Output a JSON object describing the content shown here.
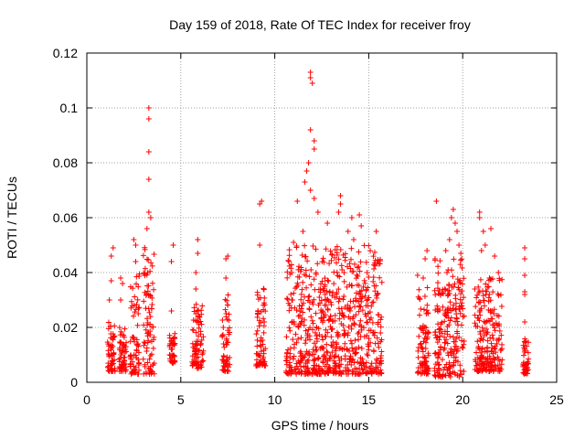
{
  "chart_data": {
    "type": "scatter",
    "title": "Day 159 of 2018, Rate Of TEC Index for receiver froy",
    "xlabel": "GPS time / hours",
    "ylabel": "ROTI / TECUs",
    "xlim": [
      0,
      25
    ],
    "ylim": [
      0,
      0.12
    ],
    "xticks": [
      "0",
      "5",
      "10",
      "15",
      "20",
      "25"
    ],
    "xtick_values": [
      0,
      5,
      10,
      15,
      20,
      25
    ],
    "yticks": [
      "0",
      "0.02",
      "0.04",
      "0.06",
      "0.08",
      "0.1",
      "0.12"
    ],
    "ytick_values": [
      0,
      0.02,
      0.04,
      0.06,
      0.08,
      0.1,
      0.12
    ],
    "grid": true,
    "marker": "+",
    "color": "#ff0000",
    "series": [
      {
        "name": "ROTI",
        "clusters": [
          {
            "x": [
              1.1,
              1.5
            ],
            "ymin": 0.004,
            "ymax": 0.022,
            "outliers": [
              [
                1.2,
                0.03
              ],
              [
                1.3,
                0.037
              ],
              [
                1.3,
                0.046
              ],
              [
                1.4,
                0.049
              ]
            ]
          },
          {
            "x": [
              1.7,
              2.1
            ],
            "ymin": 0.004,
            "ymax": 0.02,
            "outliers": [
              [
                1.8,
                0.03
              ],
              [
                1.8,
                0.038
              ],
              [
                1.9,
                0.036
              ]
            ]
          },
          {
            "x": [
              2.3,
              2.8
            ],
            "ymin": 0.003,
            "ymax": 0.04,
            "outliers": [
              [
                2.6,
                0.044
              ],
              [
                2.6,
                0.05
              ],
              [
                2.5,
                0.052
              ]
            ]
          },
          {
            "x": [
              3.0,
              3.6
            ],
            "ymin": 0.003,
            "ymax": 0.05,
            "outliers": [
              [
                3.3,
                0.1
              ],
              [
                3.3,
                0.096
              ],
              [
                3.3,
                0.084
              ],
              [
                3.3,
                0.074
              ],
              [
                3.3,
                0.062
              ],
              [
                3.4,
                0.06
              ],
              [
                3.2,
                0.056
              ]
            ]
          },
          {
            "x": [
              4.4,
              4.7
            ],
            "ymin": 0.007,
            "ymax": 0.018,
            "outliers": [
              [
                4.5,
                0.026
              ],
              [
                4.5,
                0.044
              ],
              [
                4.6,
                0.05
              ]
            ]
          },
          {
            "x": [
              5.6,
              6.2
            ],
            "ymin": 0.005,
            "ymax": 0.03,
            "outliers": [
              [
                5.8,
                0.04
              ],
              [
                5.9,
                0.047
              ],
              [
                5.9,
                0.052
              ],
              [
                5.8,
                0.034
              ]
            ]
          },
          {
            "x": [
              7.2,
              7.6
            ],
            "ymin": 0.004,
            "ymax": 0.032,
            "outliers": [
              [
                7.4,
                0.038
              ],
              [
                7.4,
                0.045
              ],
              [
                7.5,
                0.046
              ]
            ]
          },
          {
            "x": [
              9.0,
              9.5
            ],
            "ymin": 0.006,
            "ymax": 0.035,
            "outliers": [
              [
                9.2,
                0.05
              ],
              [
                9.2,
                0.065
              ],
              [
                9.3,
                0.066
              ]
            ]
          },
          {
            "x": [
              10.6,
              15.7
            ],
            "ymin": 0.003,
            "ymax": 0.05,
            "outliers": [
              [
                11.9,
                0.113
              ],
              [
                11.9,
                0.111
              ],
              [
                12.0,
                0.109
              ],
              [
                11.9,
                0.092
              ],
              [
                12.1,
                0.088
              ],
              [
                12.1,
                0.085
              ],
              [
                11.8,
                0.08
              ],
              [
                11.7,
                0.077
              ],
              [
                11.6,
                0.073
              ],
              [
                11.9,
                0.07
              ],
              [
                12.1,
                0.067
              ],
              [
                11.2,
                0.066
              ],
              [
                12.3,
                0.062
              ],
              [
                13.5,
                0.068
              ],
              [
                13.5,
                0.065
              ],
              [
                14.1,
                0.06
              ],
              [
                14.5,
                0.061
              ],
              [
                13.4,
                0.062
              ],
              [
                12.8,
                0.058
              ],
              [
                11.5,
                0.055
              ],
              [
                13.9,
                0.055
              ],
              [
                14.6,
                0.057
              ],
              [
                15.4,
                0.055
              ],
              [
                11.0,
                0.051
              ],
              [
                14.2,
                0.052
              ]
            ]
          },
          {
            "x": [
              17.6,
              18.2
            ],
            "ymin": 0.003,
            "ymax": 0.035,
            "outliers": [
              [
                17.9,
                0.038
              ],
              [
                18.0,
                0.045
              ],
              [
                18.1,
                0.048
              ],
              [
                17.6,
                0.039
              ]
            ]
          },
          {
            "x": [
              18.5,
              20.1
            ],
            "ymin": 0.002,
            "ymax": 0.045,
            "outliers": [
              [
                18.6,
                0.066
              ],
              [
                19.5,
                0.063
              ],
              [
                19.4,
                0.06
              ],
              [
                19.6,
                0.058
              ],
              [
                19.7,
                0.055
              ],
              [
                19.3,
                0.052
              ],
              [
                19.8,
                0.05
              ],
              [
                19.9,
                0.047
              ],
              [
                19.1,
                0.048
              ]
            ]
          },
          {
            "x": [
              20.6,
              22.1
            ],
            "ymin": 0.004,
            "ymax": 0.038,
            "outliers": [
              [
                20.9,
                0.062
              ],
              [
                20.9,
                0.06
              ],
              [
                21.1,
                0.055
              ],
              [
                21.2,
                0.05
              ],
              [
                21.5,
                0.056
              ],
              [
                21.7,
                0.046
              ],
              [
                21.9,
                0.04
              ],
              [
                21.0,
                0.048
              ]
            ]
          },
          {
            "x": [
              23.2,
              23.5
            ],
            "ymin": 0.003,
            "ymax": 0.017,
            "outliers": [
              [
                23.3,
                0.022
              ],
              [
                23.3,
                0.032
              ],
              [
                23.3,
                0.033
              ],
              [
                23.3,
                0.039
              ],
              [
                23.3,
                0.045
              ],
              [
                23.3,
                0.049
              ]
            ]
          }
        ]
      }
    ]
  }
}
